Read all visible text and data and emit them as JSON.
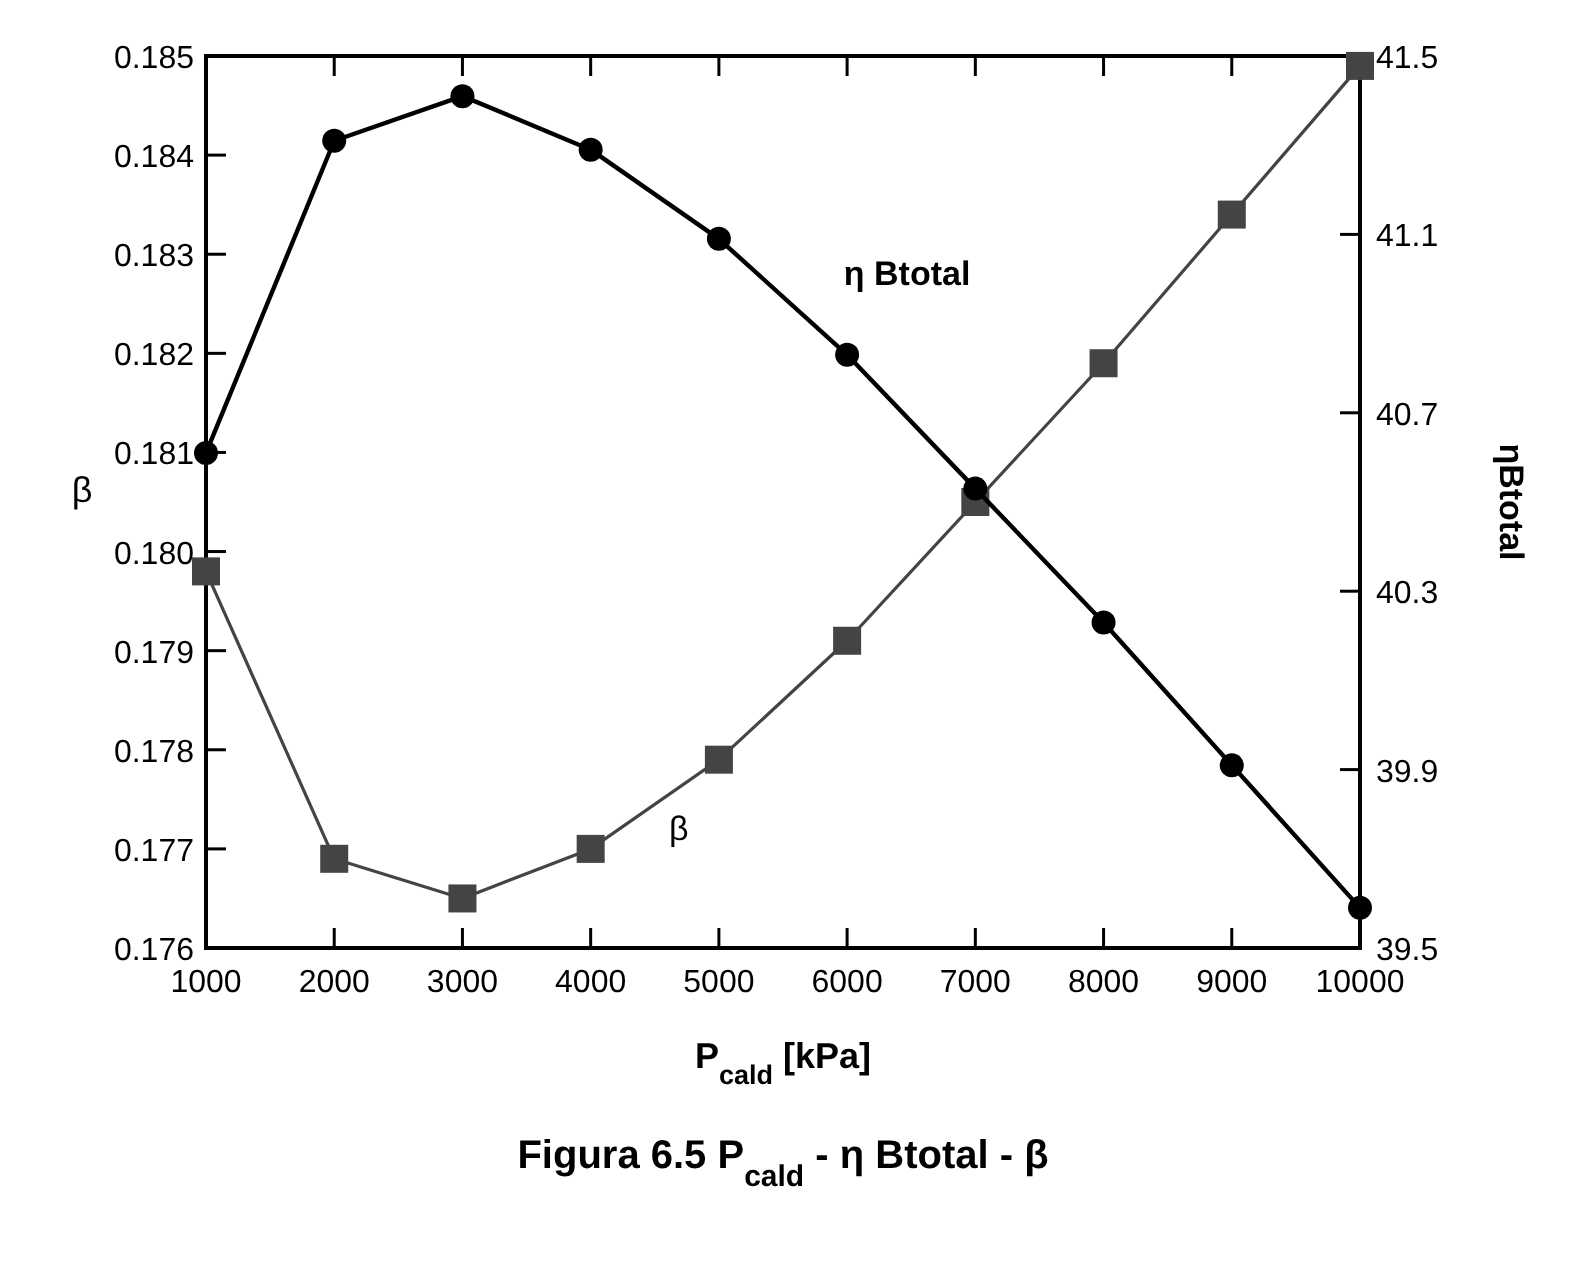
{
  "chart_data": {
    "type": "line",
    "title": "Figura 6.5  P$_{cald}$ - η Btotal - β",
    "xlabel": "P$_{cald}$ [kPa]",
    "ylabel": "β",
    "y2label": "ηBtotal",
    "x": [
      1000,
      2000,
      3000,
      4000,
      5000,
      6000,
      7000,
      8000,
      9000,
      10000
    ],
    "xlim": [
      1000,
      10000
    ],
    "xticks": [
      1000,
      2000,
      3000,
      4000,
      5000,
      6000,
      7000,
      8000,
      9000,
      10000
    ],
    "ylim": [
      0.176,
      0.185
    ],
    "yticks": [
      0.176,
      0.177,
      0.178,
      0.179,
      {
        "value": 0.18,
        "label": "0.180"
      },
      0.181,
      0.182,
      0.183,
      0.184,
      0.185
    ],
    "y2lim": [
      39.5,
      41.5
    ],
    "y2ticks": [
      39.5,
      39.9,
      40.3,
      40.7,
      41.1,
      41.5
    ],
    "series": [
      {
        "name": "β",
        "color": "#444444",
        "marker": "square",
        "values": [
          0.1798,
          0.1769,
          0.1765,
          0.177,
          0.1779,
          0.1791,
          0.1805,
          0.1819,
          0.1834,
          0.1849
        ]
      },
      {
        "name": "η Btotal",
        "color": "#000000",
        "marker": "circle",
        "axis": "y2",
        "values": [
          40.61,
          41.31,
          41.41,
          41.29,
          41.09,
          40.83,
          40.53,
          40.23,
          39.91,
          39.59
        ]
      }
    ],
    "grid": false
  }
}
